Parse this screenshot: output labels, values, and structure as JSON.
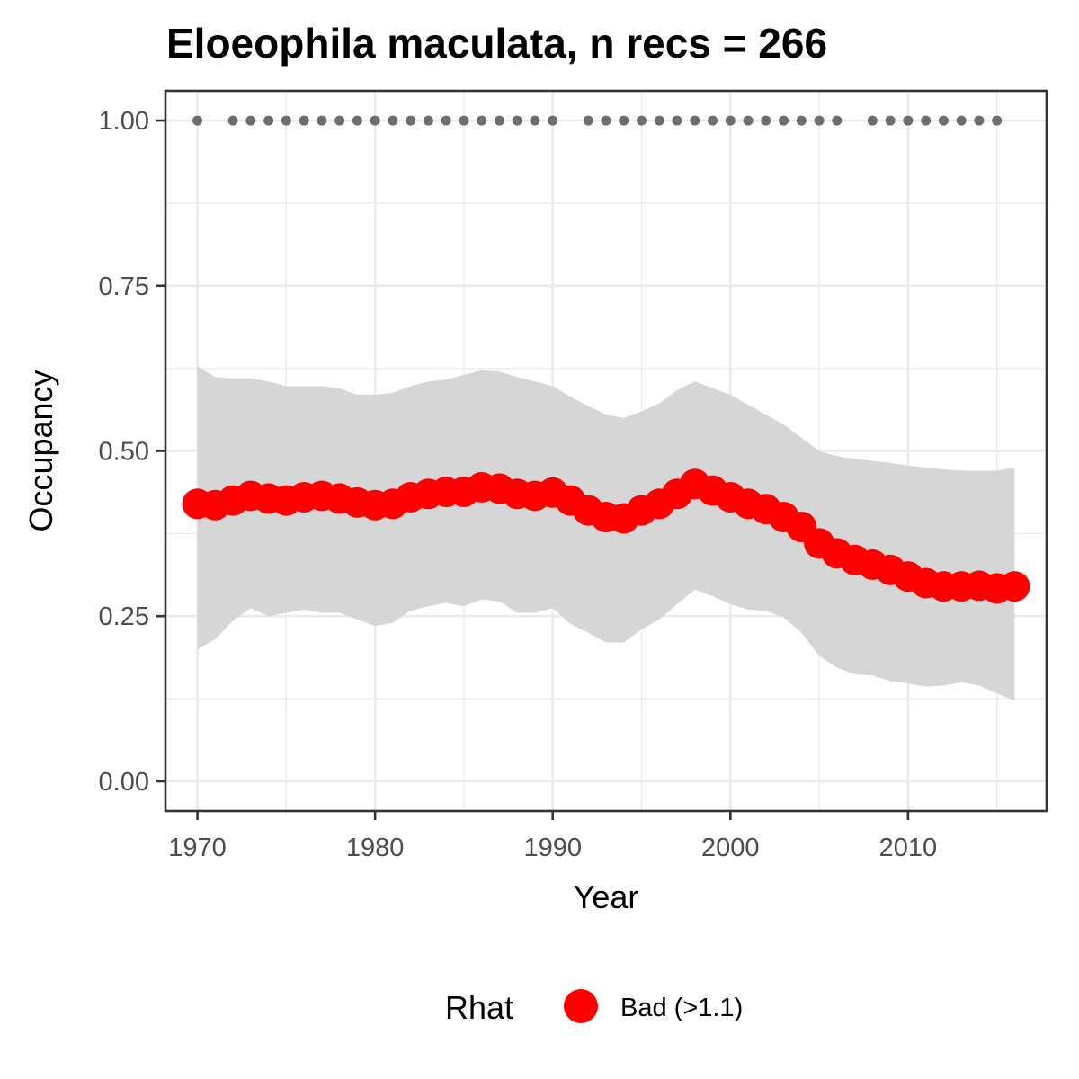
{
  "chart_data": {
    "type": "line",
    "title": "Eloeophila maculata, n recs = 266",
    "xlabel": "Year",
    "ylabel": "Occupancy",
    "xlim": [
      1968.2,
      2017.8
    ],
    "ylim": [
      -0.045,
      1.045
    ],
    "x_ticks": [
      1970,
      1980,
      1990,
      2000,
      2010
    ],
    "x_tick_labels": [
      "1970",
      "1980",
      "1990",
      "2000",
      "2010"
    ],
    "y_ticks": [
      0,
      0.25,
      0.5,
      0.75,
      1.0
    ],
    "y_tick_labels": [
      "0.00",
      "0.25",
      "0.50",
      "0.75",
      "1.00"
    ],
    "grid": true,
    "years": [
      1970,
      1971,
      1972,
      1973,
      1974,
      1975,
      1976,
      1977,
      1978,
      1979,
      1980,
      1981,
      1982,
      1983,
      1984,
      1985,
      1986,
      1987,
      1988,
      1989,
      1990,
      1991,
      1992,
      1993,
      1994,
      1995,
      1996,
      1997,
      1998,
      1999,
      2000,
      2001,
      2002,
      2003,
      2004,
      2005,
      2006,
      2007,
      2008,
      2009,
      2010,
      2011,
      2012,
      2013,
      2014,
      2015,
      2016
    ],
    "occupancy_mean": [
      0.42,
      0.418,
      0.425,
      0.432,
      0.428,
      0.425,
      0.43,
      0.432,
      0.428,
      0.422,
      0.418,
      0.42,
      0.43,
      0.435,
      0.438,
      0.438,
      0.445,
      0.443,
      0.435,
      0.432,
      0.437,
      0.425,
      0.41,
      0.4,
      0.398,
      0.41,
      0.42,
      0.435,
      0.45,
      0.44,
      0.43,
      0.42,
      0.412,
      0.4,
      0.385,
      0.36,
      0.345,
      0.335,
      0.328,
      0.32,
      0.31,
      0.3,
      0.295,
      0.295,
      0.296,
      0.292,
      0.295
    ],
    "ci_upper": [
      0.628,
      0.612,
      0.61,
      0.61,
      0.605,
      0.598,
      0.598,
      0.598,
      0.595,
      0.585,
      0.585,
      0.588,
      0.598,
      0.605,
      0.608,
      0.615,
      0.622,
      0.62,
      0.612,
      0.605,
      0.598,
      0.582,
      0.568,
      0.555,
      0.55,
      0.56,
      0.572,
      0.592,
      0.605,
      0.595,
      0.585,
      0.57,
      0.555,
      0.54,
      0.52,
      0.5,
      0.492,
      0.488,
      0.485,
      0.482,
      0.478,
      0.475,
      0.472,
      0.47,
      0.47,
      0.47,
      0.475
    ],
    "ci_lower": [
      0.2,
      0.215,
      0.243,
      0.262,
      0.25,
      0.255,
      0.26,
      0.255,
      0.255,
      0.245,
      0.235,
      0.24,
      0.258,
      0.265,
      0.27,
      0.265,
      0.275,
      0.272,
      0.255,
      0.255,
      0.262,
      0.238,
      0.225,
      0.21,
      0.21,
      0.23,
      0.245,
      0.268,
      0.29,
      0.28,
      0.268,
      0.26,
      0.258,
      0.248,
      0.225,
      0.19,
      0.172,
      0.162,
      0.16,
      0.152,
      0.148,
      0.143,
      0.145,
      0.15,
      0.145,
      0.133,
      0.122
    ],
    "record_years": [
      1970,
      1972,
      1973,
      1974,
      1975,
      1976,
      1977,
      1978,
      1979,
      1980,
      1981,
      1982,
      1983,
      1984,
      1985,
      1986,
      1987,
      1988,
      1989,
      1990,
      1992,
      1993,
      1994,
      1995,
      1996,
      1997,
      1998,
      1999,
      2000,
      2001,
      2002,
      2003,
      2004,
      2005,
      2006,
      2008,
      2009,
      2010,
      2011,
      2012,
      2013,
      2014,
      2015
    ],
    "record_value": 1.0,
    "legend": {
      "title": "Rhat",
      "position": "bottom",
      "entries": [
        {
          "label": "Bad (>1.1)",
          "color": "#ff0000"
        }
      ]
    },
    "colors": {
      "mean_line": "#ff0000",
      "ribbon": "#d3d3d3",
      "record_points": "#6e6e6e",
      "panel_border": "#333333",
      "grid": "#ebebeb"
    }
  }
}
